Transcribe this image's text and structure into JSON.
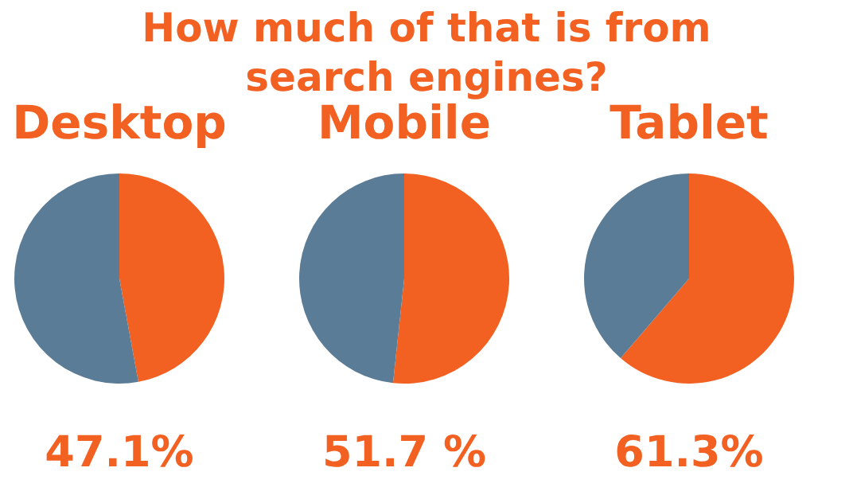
{
  "chart_data": [
    {
      "type": "other",
      "title": "How much of that is from search engines?"
    },
    {
      "type": "pie",
      "title": "Desktop",
      "categories": [
        null,
        null
      ],
      "values": [
        47.1,
        52.9
      ],
      "colors": [
        "#f26122",
        "#5b7c96"
      ],
      "value_labels": [
        "47.1%",
        null
      ]
    },
    {
      "type": "pie",
      "title": "Mobile",
      "categories": [
        null,
        null
      ],
      "values": [
        51.7,
        48.3
      ],
      "colors": [
        "#f26122",
        "#5b7c96"
      ],
      "value_labels": [
        "51.7 %",
        null
      ]
    },
    {
      "type": "pie",
      "title": "Tablet",
      "categories": [
        null,
        null
      ],
      "values": [
        61.3,
        38.7
      ],
      "colors": [
        "#f26122",
        "#5b7c96"
      ],
      "value_labels": [
        "61.3%",
        null
      ]
    }
  ]
}
